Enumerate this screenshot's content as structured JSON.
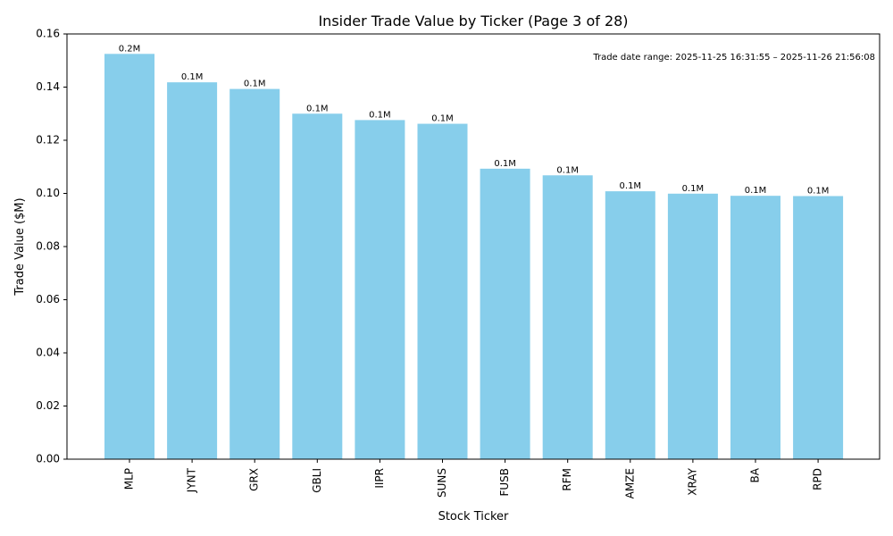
{
  "chart_data": {
    "type": "bar",
    "title": "Insider Trade Value by Ticker (Page 3 of 28)",
    "xlabel": "Stock Ticker",
    "ylabel": "Trade Value ($M)",
    "categories": [
      "MLP",
      "JYNT",
      "GRX",
      "GBLI",
      "IIPR",
      "SUNS",
      "FUSB",
      "RFM",
      "AMZE",
      "XRAY",
      "BA",
      "RPD"
    ],
    "values": [
      0.1525,
      0.1418,
      0.1393,
      0.13,
      0.1276,
      0.1262,
      0.1093,
      0.1068,
      0.1008,
      0.0999,
      0.0991,
      0.099
    ],
    "data_labels": [
      "0.2M",
      "0.1M",
      "0.1M",
      "0.1M",
      "0.1M",
      "0.1M",
      "0.1M",
      "0.1M",
      "0.1M",
      "0.1M",
      "0.1M",
      "0.1M"
    ],
    "ylim": [
      0,
      0.16
    ],
    "yticks": [
      "0.00",
      "0.02",
      "0.04",
      "0.06",
      "0.08",
      "0.10",
      "0.12",
      "0.14",
      "0.16"
    ],
    "bar_color": "#87CEEB",
    "grid": false,
    "annotation": "Trade date range: 2025-11-25 16:31:55 – 2025-11-26 21:56:08"
  }
}
